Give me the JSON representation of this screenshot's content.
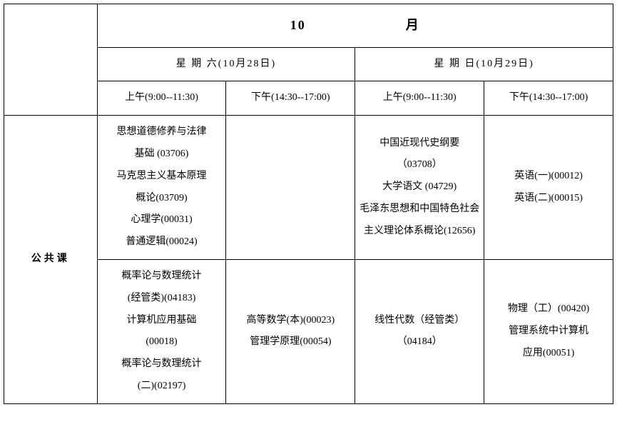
{
  "header": {
    "month_num": "10",
    "month_char": "月",
    "days": [
      {
        "label": "星 期 六",
        "date": "(10月28日)"
      },
      {
        "label": "星 期 日",
        "date": "(10月29日)"
      }
    ],
    "slots": [
      "上午(9:00--11:30)",
      "下午(14:30--17:00)",
      "上午(9:00--11:30)",
      "下午(14:30--17:00)"
    ]
  },
  "category": "公共课",
  "rows": [
    {
      "cells": [
        "思想道德修养与法律\n基础 (03706)\n马克思主义基本原理\n概论(03709)\n心理学(00031)\n普通逻辑(00024)",
        "",
        "中国近现代史纲要\n（03708）\n大学语文 (04729)\n毛泽东思想和中国特色社会\n主义理论体系概论(12656)",
        "英语(一)(00012)\n英语(二)(00015)"
      ]
    },
    {
      "cells": [
        "概率论与数理统计\n(经管类)(04183)\n计算机应用基础\n(00018)\n概率论与数理统计\n(二)(02197)",
        "高等数学(本)(00023)\n管理学原理(00054)",
        "线性代数（经管类）\n（04184）",
        "物理（工）(00420)\n管理系统中计算机\n应用(00051)"
      ]
    }
  ]
}
